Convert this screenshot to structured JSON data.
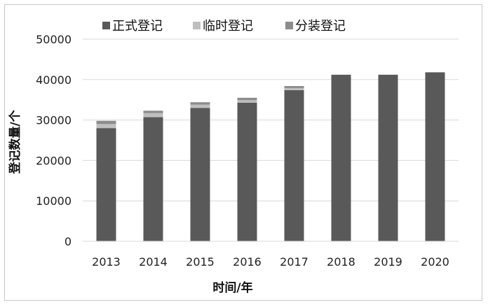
{
  "chart_data": {
    "type": "bar",
    "stacked": true,
    "categories": [
      "2013",
      "2014",
      "2015",
      "2016",
      "2017",
      "2018",
      "2019",
      "2020"
    ],
    "series": [
      {
        "name": "正式登记",
        "color": "#595959",
        "values": [
          28000,
          30700,
          33000,
          34300,
          37400,
          41200,
          41200,
          41800
        ]
      },
      {
        "name": "临时登记",
        "color": "#bfbfbf",
        "values": [
          1000,
          1000,
          800,
          600,
          500,
          0,
          0,
          0
        ]
      },
      {
        "name": "分装登记",
        "color": "#8c8c8c",
        "values": [
          800,
          600,
          600,
          600,
          500,
          0,
          0,
          0
        ]
      }
    ],
    "xlabel": "时间/年",
    "ylabel": "登记数量/个",
    "ylim": [
      0,
      50000
    ],
    "yticks": [
      "0",
      "10000",
      "20000",
      "30000",
      "40000",
      "50000"
    ],
    "grid": true,
    "legend_position": "top"
  }
}
